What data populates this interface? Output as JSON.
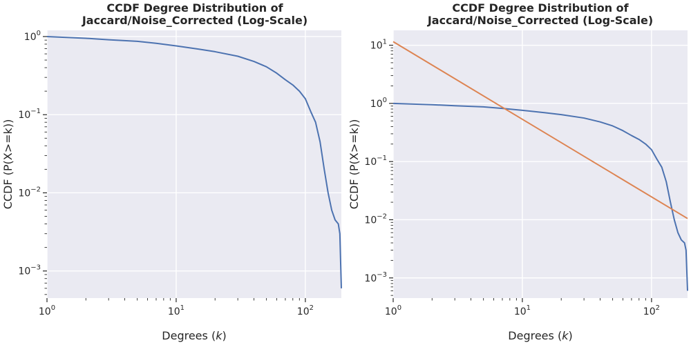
{
  "chart_data": [
    {
      "type": "line",
      "title_line1": "CCDF Degree Distribution of",
      "title_line2": "Jaccard/Noise_Corrected (Log-Scale)",
      "xlabel_prefix": "Degrees (",
      "xlabel_var": "k",
      "xlabel_suffix": ")",
      "ylabel": "CCDF (P(X>=k))",
      "xscale": "log",
      "yscale": "log",
      "xlim": [
        1,
        190
      ],
      "ylim": [
        0.00045,
        1.2
      ],
      "grid": true,
      "x_ticks": [
        {
          "value": 1,
          "base": "10",
          "exp": "0"
        },
        {
          "value": 10,
          "base": "10",
          "exp": "1"
        },
        {
          "value": 100,
          "base": "10",
          "exp": "2"
        }
      ],
      "y_ticks": [
        {
          "value": 1,
          "base": "10",
          "exp": "0"
        },
        {
          "value": 0.1,
          "base": "10",
          "exp": "−1"
        },
        {
          "value": 0.01,
          "base": "10",
          "exp": "−2"
        },
        {
          "value": 0.001,
          "base": "10",
          "exp": "−3"
        }
      ],
      "series": [
        {
          "color": "#4c72b0",
          "x": [
            1,
            2,
            3,
            5,
            7,
            10,
            15,
            20,
            30,
            40,
            50,
            60,
            70,
            80,
            90,
            100,
            110,
            120,
            130,
            140,
            150,
            160,
            170,
            180,
            185,
            190
          ],
          "y": [
            1.0,
            0.95,
            0.91,
            0.87,
            0.82,
            0.76,
            0.69,
            0.64,
            0.56,
            0.48,
            0.41,
            0.34,
            0.28,
            0.24,
            0.2,
            0.16,
            0.11,
            0.08,
            0.045,
            0.02,
            0.01,
            0.006,
            0.0045,
            0.004,
            0.003,
            0.0006
          ]
        }
      ]
    },
    {
      "type": "line",
      "title_line1": "CCDF Degree Distribution of",
      "title_line2": "Jaccard/Noise_Corrected (Log-Scale)",
      "xlabel_prefix": "Degrees (",
      "xlabel_var": "k",
      "xlabel_suffix": ")",
      "ylabel": "CCDF (P(X>=k))",
      "xscale": "log",
      "yscale": "log",
      "xlim": [
        1,
        190
      ],
      "ylim": [
        0.00045,
        18
      ],
      "grid": true,
      "x_ticks": [
        {
          "value": 1,
          "base": "10",
          "exp": "0"
        },
        {
          "value": 10,
          "base": "10",
          "exp": "1"
        },
        {
          "value": 100,
          "base": "10",
          "exp": "2"
        }
      ],
      "y_ticks": [
        {
          "value": 10,
          "base": "10",
          "exp": "1"
        },
        {
          "value": 1,
          "base": "10",
          "exp": "0"
        },
        {
          "value": 0.1,
          "base": "10",
          "exp": "−1"
        },
        {
          "value": 0.01,
          "base": "10",
          "exp": "−2"
        },
        {
          "value": 0.001,
          "base": "10",
          "exp": "−3"
        }
      ],
      "series": [
        {
          "color": "#4c72b0",
          "x": [
            1,
            2,
            3,
            5,
            7,
            10,
            15,
            20,
            30,
            40,
            50,
            60,
            70,
            80,
            90,
            100,
            110,
            120,
            130,
            140,
            150,
            160,
            170,
            180,
            185,
            190
          ],
          "y": [
            1.0,
            0.95,
            0.91,
            0.87,
            0.82,
            0.76,
            0.69,
            0.64,
            0.56,
            0.48,
            0.41,
            0.34,
            0.28,
            0.24,
            0.2,
            0.16,
            0.11,
            0.08,
            0.045,
            0.02,
            0.01,
            0.006,
            0.0045,
            0.004,
            0.003,
            0.0006
          ]
        },
        {
          "color": "#dd8452",
          "x": [
            1,
            190
          ],
          "y": [
            11.5,
            0.0105
          ]
        }
      ]
    }
  ]
}
